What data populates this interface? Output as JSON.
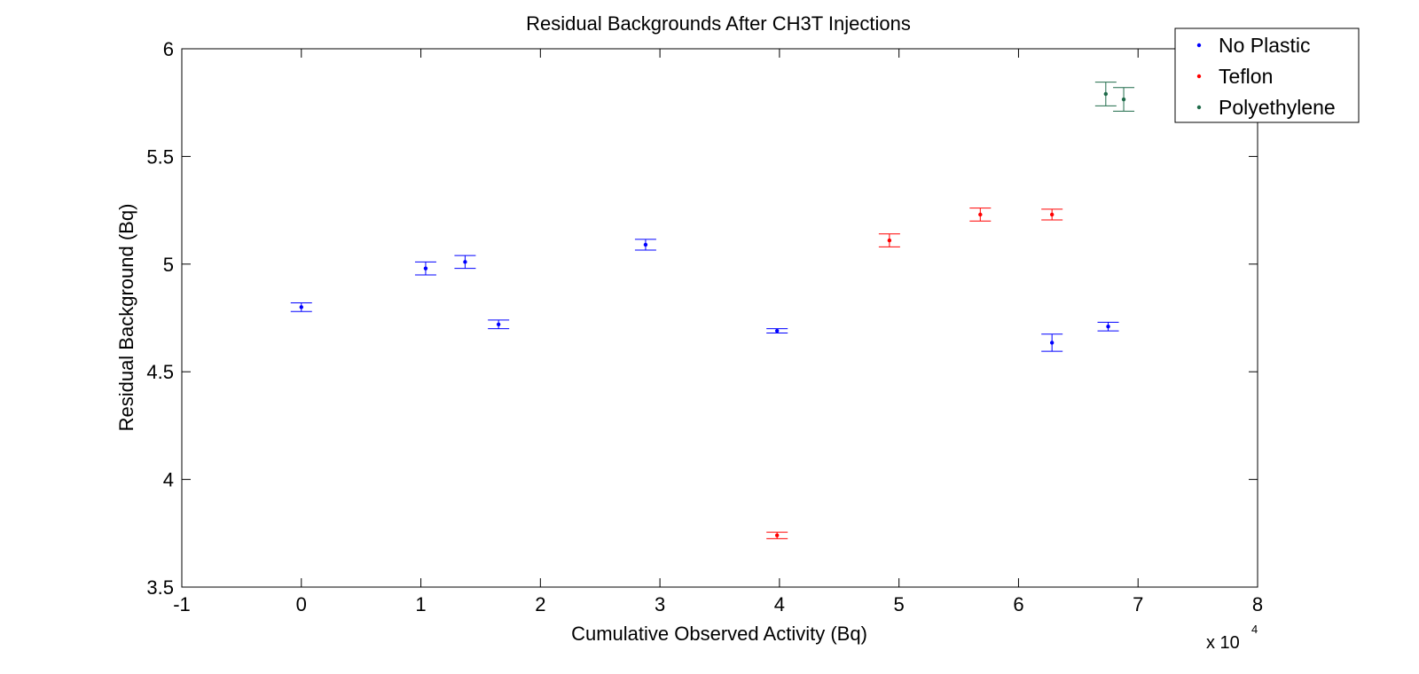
{
  "chart_data": {
    "type": "scatter",
    "title": "Residual Backgrounds After CH3T Injections",
    "xlabel": "Cumulative Observed Activity (Bq)",
    "ylabel": "Residual Background (Bq)",
    "x_multiplier": "x 10",
    "x_multiplier_exp": "4",
    "xlim": [
      -1,
      8
    ],
    "ylim": [
      3.5,
      6
    ],
    "x_ticks": [
      -1,
      0,
      1,
      2,
      3,
      4,
      5,
      6,
      7,
      8
    ],
    "x_tick_labels": [
      "-1",
      "0",
      "1",
      "2",
      "3",
      "4",
      "5",
      "6",
      "7",
      "8"
    ],
    "y_ticks": [
      3.5,
      4,
      4.5,
      5,
      5.5,
      6
    ],
    "y_tick_labels": [
      "3.5",
      "4",
      "4.5",
      "5",
      "5.5",
      "6"
    ],
    "grid": false,
    "legend_position": "top-right",
    "series": [
      {
        "name": "No Plastic",
        "color": "#0000ff",
        "points": [
          {
            "x": 0.0,
            "y": 4.8,
            "err": 0.02
          },
          {
            "x": 1.04,
            "y": 4.98,
            "err": 0.03
          },
          {
            "x": 1.37,
            "y": 5.01,
            "err": 0.03
          },
          {
            "x": 1.65,
            "y": 4.72,
            "err": 0.02
          },
          {
            "x": 2.88,
            "y": 5.09,
            "err": 0.025
          },
          {
            "x": 3.98,
            "y": 4.69,
            "err": 0.01
          },
          {
            "x": 6.28,
            "y": 4.635,
            "err": 0.04
          },
          {
            "x": 6.75,
            "y": 4.71,
            "err": 0.02
          }
        ]
      },
      {
        "name": "Teflon",
        "color": "#ff0000",
        "points": [
          {
            "x": 3.98,
            "y": 3.74,
            "err": 0.015
          },
          {
            "x": 4.92,
            "y": 5.11,
            "err": 0.03
          },
          {
            "x": 5.68,
            "y": 5.23,
            "err": 0.03
          },
          {
            "x": 6.28,
            "y": 5.23,
            "err": 0.025
          }
        ]
      },
      {
        "name": "Polyethylene",
        "color": "#1f6b4a",
        "points": [
          {
            "x": 6.73,
            "y": 5.79,
            "err": 0.055
          },
          {
            "x": 6.88,
            "y": 5.765,
            "err": 0.055
          }
        ]
      }
    ]
  }
}
